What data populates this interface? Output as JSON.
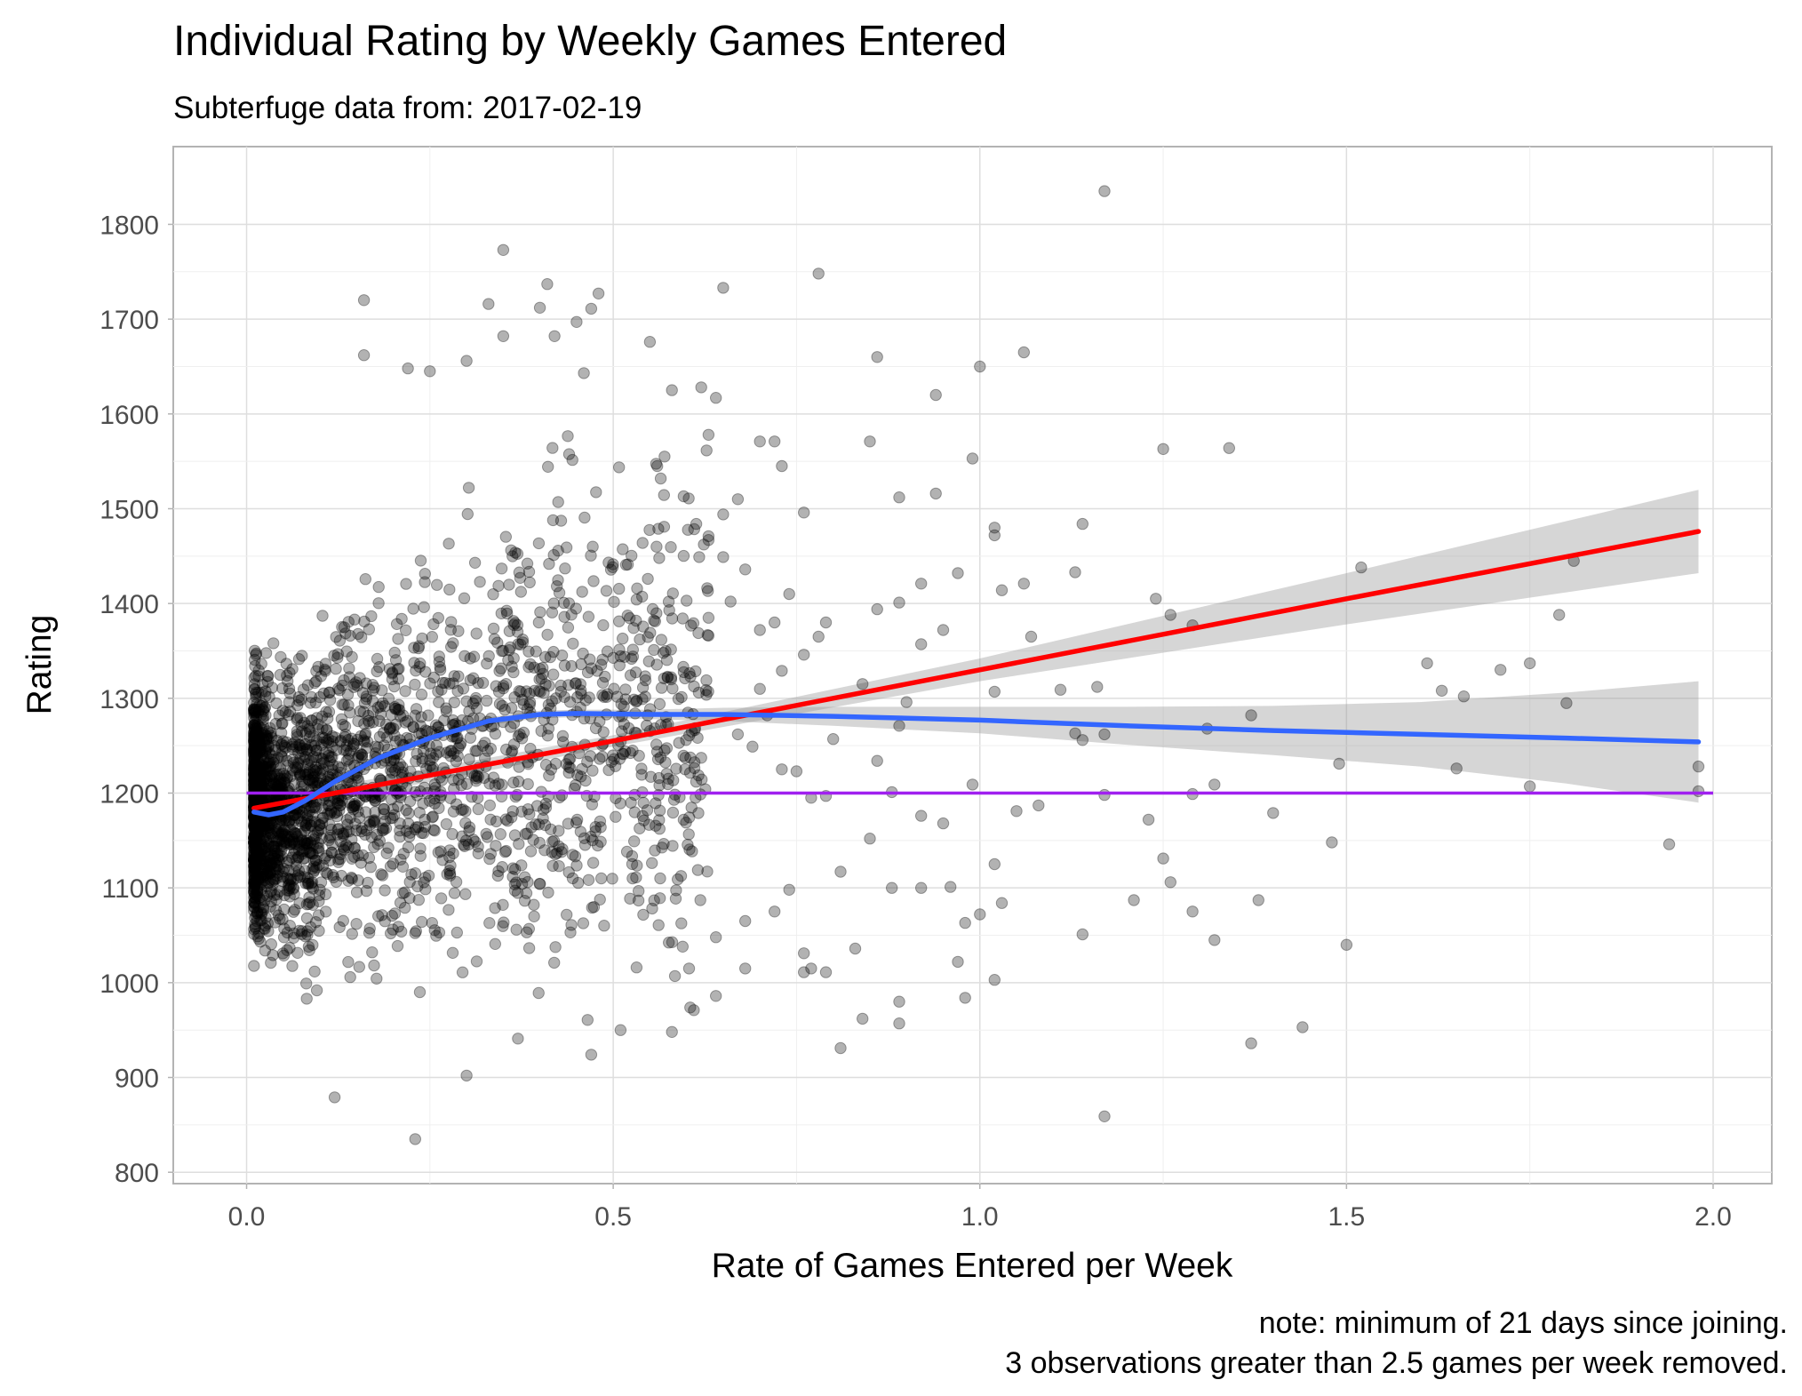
{
  "chart_data": {
    "type": "scatter",
    "title": "Individual Rating by Weekly Games Entered",
    "subtitle": "Subterfuge data from: 2017-02-19",
    "xlabel": "Rate of Games Entered per Week",
    "ylabel": "Rating",
    "caption_lines": [
      "note: minimum of 21 days since joining.",
      "3 observations greater than 2.5 games per week removed."
    ],
    "xlim": [
      -0.1,
      2.08
    ],
    "ylim": [
      788,
      1882
    ],
    "x_ticks": [
      0.0,
      0.5,
      1.0,
      1.5,
      2.0
    ],
    "x_tick_labels": [
      "0.0",
      "0.5",
      "1.0",
      "1.5",
      "2.0"
    ],
    "y_ticks": [
      800,
      900,
      1000,
      1100,
      1200,
      1300,
      1400,
      1500,
      1600,
      1700,
      1800
    ],
    "y_tick_labels": [
      "800",
      "900",
      "1000",
      "1100",
      "1200",
      "1300",
      "1400",
      "1500",
      "1600",
      "1700",
      "1800"
    ],
    "grid": true,
    "point_color": "#000000",
    "point_opacity": 0.3,
    "reference_line": {
      "y": 1200,
      "color": "#a020f0"
    },
    "linear_fit": {
      "color": "#ff0000",
      "x": [
        0.01,
        0.5,
        1.0,
        1.5,
        1.98
      ],
      "y": [
        1184,
        1255,
        1330,
        1405,
        1476
      ],
      "ci_low": [
        1176,
        1249,
        1318,
        1378,
        1432
      ],
      "ci_high": [
        1192,
        1261,
        1342,
        1432,
        1520
      ]
    },
    "loess_fit": {
      "color": "#3366ff",
      "x": [
        0.01,
        0.03,
        0.05,
        0.08,
        0.12,
        0.18,
        0.25,
        0.33,
        0.4,
        0.45,
        0.55,
        0.65,
        0.8,
        1.0,
        1.2,
        1.4,
        1.6,
        1.8,
        1.98
      ],
      "y": [
        1180,
        1177,
        1180,
        1192,
        1212,
        1237,
        1258,
        1276,
        1283,
        1284,
        1283,
        1283,
        1281,
        1277,
        1271,
        1266,
        1262,
        1258,
        1254
      ],
      "ci_low": [
        1172,
        1172,
        1175,
        1188,
        1208,
        1233,
        1255,
        1272,
        1279,
        1280,
        1278,
        1276,
        1271,
        1263,
        1251,
        1240,
        1228,
        1210,
        1190
      ],
      "ci_high": [
        1188,
        1182,
        1185,
        1196,
        1216,
        1241,
        1261,
        1280,
        1287,
        1288,
        1288,
        1290,
        1291,
        1291,
        1291,
        1292,
        1296,
        1306,
        1318
      ]
    },
    "outlier_points": [
      [
        1.17,
        1835
      ],
      [
        0.78,
        1748
      ],
      [
        0.65,
        1733
      ],
      [
        0.41,
        1737
      ],
      [
        0.35,
        1773
      ],
      [
        0.48,
        1727
      ],
      [
        0.16,
        1720
      ],
      [
        0.33,
        1716
      ],
      [
        0.4,
        1712
      ],
      [
        0.47,
        1711
      ],
      [
        0.45,
        1697
      ],
      [
        0.42,
        1682
      ],
      [
        0.35,
        1682
      ],
      [
        1.06,
        1665
      ],
      [
        0.86,
        1660
      ],
      [
        0.3,
        1656
      ],
      [
        0.16,
        1662
      ],
      [
        0.55,
        1676
      ],
      [
        0.46,
        1643
      ],
      [
        0.22,
        1648
      ],
      [
        0.25,
        1645
      ],
      [
        1.0,
        1650
      ],
      [
        0.94,
        1620
      ],
      [
        0.62,
        1628
      ],
      [
        0.58,
        1625
      ],
      [
        0.64,
        1617
      ],
      [
        0.7,
        1571
      ],
      [
        0.72,
        1571
      ],
      [
        0.63,
        1578
      ],
      [
        0.85,
        1571
      ],
      [
        0.99,
        1553
      ],
      [
        1.25,
        1563
      ],
      [
        1.34,
        1564
      ],
      [
        0.73,
        1545
      ],
      [
        0.56,
        1545
      ],
      [
        0.57,
        1555
      ],
      [
        0.94,
        1516
      ],
      [
        0.89,
        1512
      ],
      [
        0.67,
        1510
      ],
      [
        1.02,
        1480
      ],
      [
        1.14,
        1484
      ],
      [
        1.02,
        1472
      ],
      [
        0.76,
        1496
      ],
      [
        1.52,
        1438
      ],
      [
        1.13,
        1433
      ],
      [
        1.81,
        1445
      ],
      [
        1.06,
        1421
      ],
      [
        1.24,
        1405
      ],
      [
        1.03,
        1414
      ],
      [
        0.92,
        1421
      ],
      [
        0.97,
        1432
      ],
      [
        1.26,
        1388
      ],
      [
        1.29,
        1377
      ],
      [
        0.86,
        1394
      ],
      [
        0.89,
        1401
      ],
      [
        0.95,
        1372
      ],
      [
        0.92,
        1357
      ],
      [
        1.07,
        1365
      ],
      [
        1.79,
        1388
      ],
      [
        1.61,
        1337
      ],
      [
        1.75,
        1337
      ],
      [
        1.71,
        1330
      ],
      [
        1.63,
        1308
      ],
      [
        1.66,
        1302
      ],
      [
        1.02,
        1307
      ],
      [
        0.84,
        1315
      ],
      [
        1.11,
        1309
      ],
      [
        1.16,
        1312
      ],
      [
        1.37,
        1282
      ],
      [
        1.8,
        1295
      ],
      [
        0.9,
        1296
      ],
      [
        0.89,
        1271
      ],
      [
        0.86,
        1234
      ],
      [
        1.13,
        1263
      ],
      [
        1.14,
        1256
      ],
      [
        1.17,
        1262
      ],
      [
        1.31,
        1268
      ],
      [
        0.8,
        1257
      ],
      [
        0.99,
        1209
      ],
      [
        1.29,
        1199
      ],
      [
        1.32,
        1209
      ],
      [
        1.17,
        1198
      ],
      [
        1.05,
        1181
      ],
      [
        1.08,
        1187
      ],
      [
        1.4,
        1179
      ],
      [
        1.49,
        1231
      ],
      [
        1.65,
        1226
      ],
      [
        1.75,
        1207
      ],
      [
        1.98,
        1228
      ],
      [
        1.98,
        1202
      ],
      [
        1.94,
        1146
      ],
      [
        1.48,
        1148
      ],
      [
        1.23,
        1172
      ],
      [
        1.25,
        1131
      ],
      [
        1.26,
        1106
      ],
      [
        1.21,
        1087
      ],
      [
        1.29,
        1075
      ],
      [
        1.38,
        1087
      ],
      [
        1.32,
        1045
      ],
      [
        1.5,
        1040
      ],
      [
        1.14,
        1051
      ],
      [
        1.03,
        1084
      ],
      [
        1.02,
        1125
      ],
      [
        0.98,
        1063
      ],
      [
        1.0,
        1072
      ],
      [
        0.97,
        1022
      ],
      [
        0.98,
        984
      ],
      [
        1.02,
        1003
      ],
      [
        0.89,
        980
      ],
      [
        0.89,
        957
      ],
      [
        0.84,
        962
      ],
      [
        0.81,
        931
      ],
      [
        0.83,
        1036
      ],
      [
        0.79,
        1011
      ],
      [
        0.76,
        1031
      ],
      [
        0.92,
        1100
      ],
      [
        0.96,
        1101
      ],
      [
        0.88,
        1100
      ],
      [
        0.81,
        1117
      ],
      [
        0.95,
        1168
      ],
      [
        1.44,
        953
      ],
      [
        1.37,
        936
      ],
      [
        1.17,
        859
      ],
      [
        0.23,
        835
      ],
      [
        0.12,
        879
      ],
      [
        0.3,
        902
      ],
      [
        0.37,
        941
      ],
      [
        0.47,
        924
      ],
      [
        0.58,
        948
      ],
      [
        0.51,
        950
      ],
      [
        0.61,
        971
      ],
      [
        0.64,
        986
      ],
      [
        0.68,
        1015
      ],
      [
        0.64,
        1048
      ],
      [
        0.68,
        1065
      ],
      [
        0.74,
        1098
      ],
      [
        0.72,
        1075
      ],
      [
        0.77,
        1015
      ],
      [
        0.76,
        1011
      ],
      [
        0.85,
        1152
      ],
      [
        0.92,
        1176
      ],
      [
        0.77,
        1195
      ],
      [
        0.79,
        1197
      ],
      [
        0.88,
        1201
      ],
      [
        0.75,
        1223
      ],
      [
        0.73,
        1225
      ],
      [
        0.69,
        1249
      ],
      [
        0.67,
        1262
      ],
      [
        0.71,
        1282
      ],
      [
        0.7,
        1310
      ],
      [
        0.73,
        1329
      ],
      [
        0.76,
        1346
      ],
      [
        0.78,
        1365
      ],
      [
        0.79,
        1380
      ],
      [
        0.72,
        1380
      ],
      [
        0.74,
        1410
      ],
      [
        0.66,
        1402
      ],
      [
        0.7,
        1372
      ],
      [
        0.63,
        1385
      ],
      [
        0.6,
        1403
      ],
      [
        0.65,
        1449
      ],
      [
        0.63,
        1467
      ],
      [
        0.65,
        1494
      ],
      [
        0.63,
        1471
      ],
      [
        0.68,
        1436
      ]
    ]
  }
}
